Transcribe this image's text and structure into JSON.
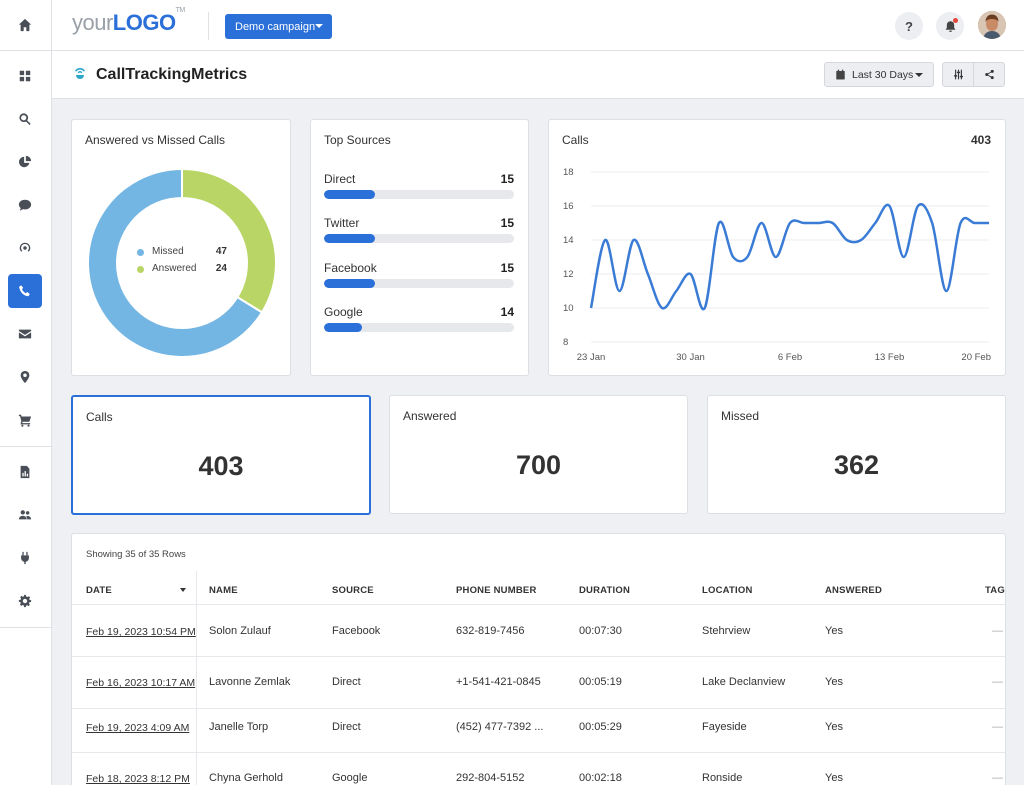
{
  "brand": {
    "your": "your",
    "logo": "LOGO",
    "tm": "TM"
  },
  "campaign": {
    "label": "Demo campaign"
  },
  "topbar": {
    "help": "?"
  },
  "page": {
    "title": "CallTrackingMetrics",
    "date_range": "Last 30 Days"
  },
  "sidebar": {
    "items": [
      {
        "icon": "home-icon"
      },
      {
        "icon": "dashboard-icon"
      },
      {
        "icon": "search-icon"
      },
      {
        "icon": "pie-chart-icon"
      },
      {
        "icon": "chat-icon"
      },
      {
        "icon": "signal-icon"
      },
      {
        "icon": "phone-icon",
        "active": true
      },
      {
        "icon": "mail-icon"
      },
      {
        "icon": "location-pin-icon"
      },
      {
        "icon": "cart-icon"
      },
      {
        "icon": "report-icon"
      },
      {
        "icon": "users-icon"
      },
      {
        "icon": "plug-icon"
      },
      {
        "icon": "gear-icon"
      }
    ]
  },
  "donut": {
    "title": "Answered vs Missed Calls",
    "legend": [
      {
        "label": "Missed",
        "value": 47,
        "color": "#74b6e3"
      },
      {
        "label": "Answered",
        "value": 24,
        "color": "#b8d565"
      }
    ]
  },
  "sources": {
    "title": "Top Sources",
    "items": [
      {
        "name": "Direct",
        "value": "15",
        "fill": 0.27
      },
      {
        "name": "Twitter",
        "value": "15",
        "fill": 0.27
      },
      {
        "name": "Facebook",
        "value": "15",
        "fill": 0.27
      },
      {
        "name": "Google",
        "value": "14",
        "fill": 0.2
      }
    ]
  },
  "calls_chart": {
    "title": "Calls",
    "total": "403"
  },
  "chart_data": {
    "type": "line",
    "title": "Calls",
    "x": [
      "23 Jan",
      "24 Jan",
      "25 Jan",
      "26 Jan",
      "27 Jan",
      "28 Jan",
      "29 Jan",
      "30 Jan",
      "31 Jan",
      "1 Feb",
      "2 Feb",
      "3 Feb",
      "4 Feb",
      "5 Feb",
      "6 Feb",
      "7 Feb",
      "8 Feb",
      "9 Feb",
      "10 Feb",
      "11 Feb",
      "12 Feb",
      "13 Feb",
      "14 Feb",
      "15 Feb",
      "16 Feb",
      "17 Feb",
      "18 Feb",
      "19 Feb",
      "20 Feb"
    ],
    "series": [
      {
        "values": [
          10,
          14,
          11,
          14,
          12,
          10,
          11,
          12,
          10,
          15,
          13,
          13,
          15,
          13,
          15,
          15,
          15,
          15,
          14,
          14,
          15,
          16,
          13,
          16,
          15,
          11,
          15,
          15,
          15
        ],
        "color": "#3a7bd5"
      }
    ],
    "xticks": [
      "23 Jan",
      "30 Jan",
      "6 Feb",
      "13 Feb",
      "20 Feb"
    ],
    "yticks": [
      8,
      10,
      12,
      14,
      16,
      18
    ],
    "ylim": [
      8,
      18
    ],
    "grid": true
  },
  "kpis": [
    {
      "label": "Calls",
      "value": "403"
    },
    {
      "label": "Answered",
      "value": "700"
    },
    {
      "label": "Missed",
      "value": "362"
    }
  ],
  "table": {
    "count": "Showing 35 of 35 Rows",
    "headers": [
      "DATE",
      "NAME",
      "SOURCE",
      "PHONE NUMBER",
      "DURATION",
      "LOCATION",
      "ANSWERED",
      "TAGS"
    ],
    "rows": [
      {
        "date": "Feb 19, 2023 10:54 PM",
        "name": "Solon Zulauf",
        "source": "Facebook",
        "phone": "632-819-7456",
        "duration": "00:07:30",
        "location": "Stehrview",
        "answered": "Yes",
        "tags": "—"
      },
      {
        "date": "Feb 16, 2023 10:17 AM",
        "name": "Lavonne Zemlak",
        "source": "Direct",
        "phone": "+1-541-421-0845",
        "duration": "00:05:19",
        "location": "Lake Declanview",
        "answered": "Yes",
        "tags": "—"
      },
      {
        "date": "Feb 19, 2023 4:09 AM",
        "name": "Janelle Torp",
        "source": "Direct",
        "phone": "(452) 477-7392 ...",
        "duration": "00:05:29",
        "location": "Fayeside",
        "answered": "Yes",
        "tags": "—"
      },
      {
        "date": "Feb 18, 2023 8:12 PM",
        "name": "Chyna Gerhold",
        "source": "Google",
        "phone": "292-804-5152",
        "duration": "00:02:18",
        "location": "Ronside",
        "answered": "Yes",
        "tags": "—"
      }
    ]
  }
}
